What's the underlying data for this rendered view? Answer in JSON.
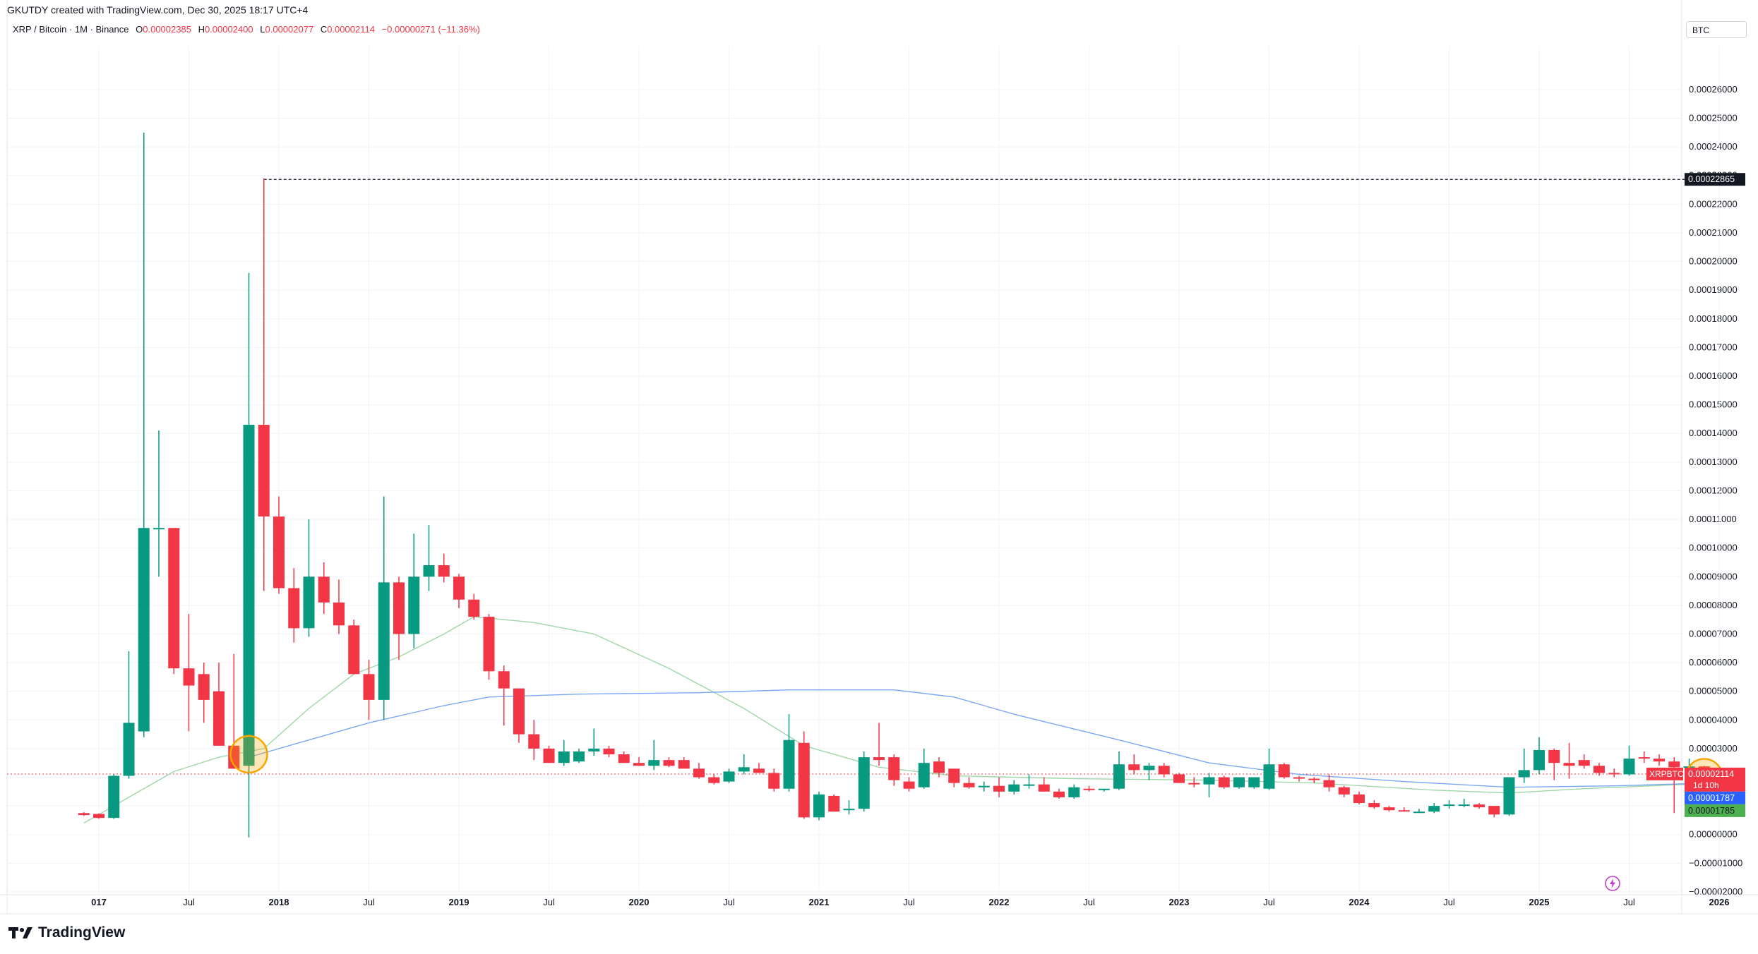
{
  "header": {
    "credit": "GKUTDY created with TradingView.com, Dec 30, 2025 18:17 UTC+4",
    "symbol": "XRP / Bitcoin · 1M · Binance",
    "o_label": "O",
    "o_value": "0.00002385",
    "h_label": "H",
    "h_value": "0.00002400",
    "l_label": "L",
    "l_value": "0.00002077",
    "c_label": "C",
    "c_value": "0.00002114",
    "change": "−0.00000271 (−11.36%)",
    "currency": "BTC"
  },
  "footer": {
    "brand": "TradingView"
  },
  "colors": {
    "up": "#089981",
    "down": "#f23645",
    "ma_fast": "#9fd6a8",
    "ma_slow": "#7aa7f5",
    "highlight": "#f7a600",
    "grid": "#f0f3fa"
  },
  "chart_data": {
    "type": "candlestick",
    "y_ticks": [
      "0.00026000",
      "0.00025000",
      "0.00024000",
      "0.00023000",
      "0.00022000",
      "0.00021000",
      "0.00020000",
      "0.00019000",
      "0.00018000",
      "0.00017000",
      "0.00016000",
      "0.00015000",
      "0.00014000",
      "0.00013000",
      "0.00012000",
      "0.00011000",
      "0.00010000",
      "0.00009000",
      "0.00008000",
      "0.00007000",
      "0.00006000",
      "0.00005000",
      "0.00004000",
      "0.00003000",
      "0.00002000",
      "0.00001000",
      "0.00000000",
      "−0.00001000",
      "−0.00002000"
    ],
    "ylim": [
      -2.1e-05,
      0.000275
    ],
    "x_ticks": [
      {
        "label": "017",
        "date": "2017-01",
        "bold": true
      },
      {
        "label": "Jul",
        "date": "2017-07",
        "bold": false
      },
      {
        "label": "2018",
        "date": "2018-01",
        "bold": true
      },
      {
        "label": "Jul",
        "date": "2018-07",
        "bold": false
      },
      {
        "label": "2019",
        "date": "2019-01",
        "bold": true
      },
      {
        "label": "Jul",
        "date": "2019-07",
        "bold": false
      },
      {
        "label": "2020",
        "date": "2020-01",
        "bold": true
      },
      {
        "label": "Jul",
        "date": "2020-07",
        "bold": false
      },
      {
        "label": "2021",
        "date": "2021-01",
        "bold": true
      },
      {
        "label": "Jul",
        "date": "2021-07",
        "bold": false
      },
      {
        "label": "2022",
        "date": "2022-01",
        "bold": true
      },
      {
        "label": "Jul",
        "date": "2022-07",
        "bold": false
      },
      {
        "label": "2023",
        "date": "2023-01",
        "bold": true
      },
      {
        "label": "Jul",
        "date": "2023-07",
        "bold": false
      },
      {
        "label": "2024",
        "date": "2024-01",
        "bold": true
      },
      {
        "label": "Jul",
        "date": "2024-07",
        "bold": false
      },
      {
        "label": "2025",
        "date": "2025-01",
        "bold": true
      },
      {
        "label": "Jul",
        "date": "2025-07",
        "bold": false
      },
      {
        "label": "2026",
        "date": "2026-01",
        "bold": true
      }
    ],
    "ath_level": {
      "value": 0.00022865,
      "label": "0.00022865"
    },
    "price_tags": [
      {
        "name": "XRPBTC",
        "value": 2.114e-05,
        "label": "0.00002114",
        "sub": "1d 10h",
        "color": "#f23645"
      },
      {
        "name": "",
        "value": 1.787e-05,
        "label": "0.00001787",
        "color": "#2962ff"
      },
      {
        "name": "",
        "value": 1.785e-05,
        "label": "0.00001785",
        "color": "#4caf50"
      }
    ],
    "highlights": [
      {
        "date": "2017-11",
        "value": 2.8e-05
      },
      {
        "date": "2025-12",
        "value": 2e-05
      }
    ],
    "candles": [
      {
        "d": "2016-12",
        "o": 7.5e-06,
        "h": 7.8e-06,
        "l": 6.5e-06,
        "c": 6.8e-06
      },
      {
        "d": "2017-01",
        "o": 7.2e-06,
        "h": 7.4e-06,
        "l": 5.5e-06,
        "c": 5.8e-06
      },
      {
        "d": "2017-02",
        "o": 5.8e-06,
        "h": 2.1e-05,
        "l": 5.5e-06,
        "c": 2.05e-05
      },
      {
        "d": "2017-03",
        "o": 2.05e-05,
        "h": 6.4e-05,
        "l": 1.95e-05,
        "c": 3.9e-05
      },
      {
        "d": "2017-04",
        "o": 3.6e-05,
        "h": 0.000245,
        "l": 3.4e-05,
        "c": 0.000107
      },
      {
        "d": "2017-05",
        "o": 0.000107,
        "h": 0.000141,
        "l": 9e-05,
        "c": 0.000107
      },
      {
        "d": "2017-06",
        "o": 0.000107,
        "h": 0.000107,
        "l": 5.6e-05,
        "c": 5.8e-05
      },
      {
        "d": "2017-07",
        "o": 5.8e-05,
        "h": 7.7e-05,
        "l": 3.6e-05,
        "c": 5.2e-05
      },
      {
        "d": "2017-08",
        "o": 5.6e-05,
        "h": 6e-05,
        "l": 3.9e-05,
        "c": 4.7e-05
      },
      {
        "d": "2017-09",
        "o": 5e-05,
        "h": 6e-05,
        "l": 3.1e-05,
        "c": 3.1e-05
      },
      {
        "d": "2017-10",
        "o": 3.1e-05,
        "h": 6.3e-05,
        "l": 2.3e-05,
        "c": 2.3e-05
      },
      {
        "d": "2017-11",
        "o": 2.4e-05,
        "h": 0.000196,
        "l": -1e-06,
        "c": 0.000143
      },
      {
        "d": "2017-12",
        "o": 0.000143,
        "h": 0.000229,
        "l": 8.5e-05,
        "c": 0.000111
      },
      {
        "d": "2018-01",
        "o": 0.000111,
        "h": 0.000118,
        "l": 8.4e-05,
        "c": 8.6e-05
      },
      {
        "d": "2018-02",
        "o": 8.6e-05,
        "h": 9.3e-05,
        "l": 6.7e-05,
        "c": 7.2e-05
      },
      {
        "d": "2018-03",
        "o": 7.2e-05,
        "h": 0.00011,
        "l": 6.9e-05,
        "c": 9e-05
      },
      {
        "d": "2018-04",
        "o": 9e-05,
        "h": 9.5e-05,
        "l": 7.7e-05,
        "c": 8.1e-05
      },
      {
        "d": "2018-05",
        "o": 8.1e-05,
        "h": 8.9e-05,
        "l": 7e-05,
        "c": 7.3e-05
      },
      {
        "d": "2018-06",
        "o": 7.3e-05,
        "h": 7.5e-05,
        "l": 5.6e-05,
        "c": 5.6e-05
      },
      {
        "d": "2018-07",
        "o": 5.6e-05,
        "h": 6.1e-05,
        "l": 4e-05,
        "c": 4.7e-05
      },
      {
        "d": "2018-08",
        "o": 4.7e-05,
        "h": 0.000118,
        "l": 4e-05,
        "c": 8.8e-05
      },
      {
        "d": "2018-09",
        "o": 8.8e-05,
        "h": 9e-05,
        "l": 6.1e-05,
        "c": 7e-05
      },
      {
        "d": "2018-10",
        "o": 7e-05,
        "h": 0.000105,
        "l": 6.5e-05,
        "c": 9e-05
      },
      {
        "d": "2018-11",
        "o": 9e-05,
        "h": 0.000108,
        "l": 8.5e-05,
        "c": 9.4e-05
      },
      {
        "d": "2018-12",
        "o": 9.4e-05,
        "h": 9.8e-05,
        "l": 8.8e-05,
        "c": 9e-05
      },
      {
        "d": "2019-01",
        "o": 9e-05,
        "h": 9.1e-05,
        "l": 7.9e-05,
        "c": 8.2e-05
      },
      {
        "d": "2019-02",
        "o": 8.2e-05,
        "h": 8.4e-05,
        "l": 7.5e-05,
        "c": 7.6e-05
      },
      {
        "d": "2019-03",
        "o": 7.6e-05,
        "h": 7.7e-05,
        "l": 5.4e-05,
        "c": 5.7e-05
      },
      {
        "d": "2019-04",
        "o": 5.7e-05,
        "h": 5.9e-05,
        "l": 3.8e-05,
        "c": 5.1e-05
      },
      {
        "d": "2019-05",
        "o": 5.1e-05,
        "h": 5.1e-05,
        "l": 3.2e-05,
        "c": 3.5e-05
      },
      {
        "d": "2019-06",
        "o": 3.5e-05,
        "h": 4e-05,
        "l": 2.6e-05,
        "c": 3e-05
      },
      {
        "d": "2019-07",
        "o": 3e-05,
        "h": 3.1e-05,
        "l": 2.6e-05,
        "c": 2.5e-05
      },
      {
        "d": "2019-08",
        "o": 2.5e-05,
        "h": 3.3e-05,
        "l": 2.4e-05,
        "c": 2.9e-05
      },
      {
        "d": "2019-09",
        "o": 2.55e-05,
        "h": 3e-05,
        "l": 2.5e-05,
        "c": 2.9e-05
      },
      {
        "d": "2019-10",
        "o": 2.9e-05,
        "h": 3.7e-05,
        "l": 2.75e-05,
        "c": 3e-05
      },
      {
        "d": "2019-11",
        "o": 3e-05,
        "h": 3.1e-05,
        "l": 2.7e-05,
        "c": 2.8e-05
      },
      {
        "d": "2019-12",
        "o": 2.8e-05,
        "h": 2.9e-05,
        "l": 2.5e-05,
        "c": 2.5e-05
      },
      {
        "d": "2020-01",
        "o": 2.5e-05,
        "h": 2.7e-05,
        "l": 2.4e-05,
        "c": 2.4e-05
      },
      {
        "d": "2020-02",
        "o": 2.4e-05,
        "h": 3.3e-05,
        "l": 2.25e-05,
        "c": 2.6e-05
      },
      {
        "d": "2020-03",
        "o": 2.6e-05,
        "h": 2.7e-05,
        "l": 2.35e-05,
        "c": 2.4e-05
      },
      {
        "d": "2020-04",
        "o": 2.6e-05,
        "h": 2.7e-05,
        "l": 2.3e-05,
        "c": 2.3e-05
      },
      {
        "d": "2020-05",
        "o": 2.3e-05,
        "h": 2.5e-05,
        "l": 1.95e-05,
        "c": 2e-05
      },
      {
        "d": "2020-06",
        "o": 2e-05,
        "h": 2.1e-05,
        "l": 1.75e-05,
        "c": 1.8e-05
      },
      {
        "d": "2020-07",
        "o": 1.85e-05,
        "h": 2.3e-05,
        "l": 1.8e-05,
        "c": 2.2e-05
      },
      {
        "d": "2020-08",
        "o": 2.2e-05,
        "h": 2.8e-05,
        "l": 2.1e-05,
        "c": 2.35e-05
      },
      {
        "d": "2020-09",
        "o": 2.3e-05,
        "h": 2.5e-05,
        "l": 2.15e-05,
        "c": 2.15e-05
      },
      {
        "d": "2020-10",
        "o": 2.15e-05,
        "h": 2.3e-05,
        "l": 1.5e-05,
        "c": 1.6e-05
      },
      {
        "d": "2020-11",
        "o": 1.6e-05,
        "h": 4.2e-05,
        "l": 1.5e-05,
        "c": 3.3e-05
      },
      {
        "d": "2020-12",
        "o": 3.2e-05,
        "h": 3.6e-05,
        "l": 5.5e-06,
        "c": 6e-06
      },
      {
        "d": "2021-01",
        "o": 6e-06,
        "h": 1.5e-05,
        "l": 5e-06,
        "c": 1.4e-05
      },
      {
        "d": "2021-02",
        "o": 1.35e-05,
        "h": 1.4e-05,
        "l": 8e-06,
        "c": 8e-06
      },
      {
        "d": "2021-03",
        "o": 8.5e-06,
        "h": 1.2e-05,
        "l": 7e-06,
        "c": 9e-06
      },
      {
        "d": "2021-04",
        "o": 9e-06,
        "h": 2.9e-05,
        "l": 8e-06,
        "c": 2.7e-05
      },
      {
        "d": "2021-05",
        "o": 2.7e-05,
        "h": 3.9e-05,
        "l": 2.4e-05,
        "c": 2.6e-05
      },
      {
        "d": "2021-06",
        "o": 2.7e-05,
        "h": 2.8e-05,
        "l": 1.7e-05,
        "c": 1.9e-05
      },
      {
        "d": "2021-07",
        "o": 1.85e-05,
        "h": 2e-05,
        "l": 1.5e-05,
        "c": 1.6e-05
      },
      {
        "d": "2021-08",
        "o": 1.65e-05,
        "h": 3e-05,
        "l": 1.6e-05,
        "c": 2.5e-05
      },
      {
        "d": "2021-09",
        "o": 2.55e-05,
        "h": 2.7e-05,
        "l": 2e-05,
        "c": 2.15e-05
      },
      {
        "d": "2021-10",
        "o": 2.3e-05,
        "h": 2.3e-05,
        "l": 1.65e-05,
        "c": 1.8e-05
      },
      {
        "d": "2021-11",
        "o": 1.8e-05,
        "h": 2e-05,
        "l": 1.6e-05,
        "c": 1.65e-05
      },
      {
        "d": "2021-12",
        "o": 1.65e-05,
        "h": 1.85e-05,
        "l": 1.5e-05,
        "c": 1.7e-05
      },
      {
        "d": "2022-01",
        "o": 1.7e-05,
        "h": 2e-05,
        "l": 1.3e-05,
        "c": 1.5e-05
      },
      {
        "d": "2022-02",
        "o": 1.5e-05,
        "h": 1.9e-05,
        "l": 1.4e-05,
        "c": 1.75e-05
      },
      {
        "d": "2022-03",
        "o": 1.75e-05,
        "h": 2.1e-05,
        "l": 1.6e-05,
        "c": 1.75e-05
      },
      {
        "d": "2022-04",
        "o": 1.75e-05,
        "h": 2e-05,
        "l": 1.5e-05,
        "c": 1.5e-05
      },
      {
        "d": "2022-05",
        "o": 1.5e-05,
        "h": 1.6e-05,
        "l": 1.25e-05,
        "c": 1.3e-05
      },
      {
        "d": "2022-06",
        "o": 1.3e-05,
        "h": 1.75e-05,
        "l": 1.25e-05,
        "c": 1.65e-05
      },
      {
        "d": "2022-07",
        "o": 1.6e-05,
        "h": 1.7e-05,
        "l": 1.5e-05,
        "c": 1.55e-05
      },
      {
        "d": "2022-08",
        "o": 1.55e-05,
        "h": 1.6e-05,
        "l": 1.5e-05,
        "c": 1.6e-05
      },
      {
        "d": "2022-09",
        "o": 1.6e-05,
        "h": 2.9e-05,
        "l": 1.55e-05,
        "c": 2.45e-05
      },
      {
        "d": "2022-10",
        "o": 2.45e-05,
        "h": 2.8e-05,
        "l": 2.1e-05,
        "c": 2.25e-05
      },
      {
        "d": "2022-11",
        "o": 2.25e-05,
        "h": 2.5e-05,
        "l": 1.9e-05,
        "c": 2.4e-05
      },
      {
        "d": "2022-12",
        "o": 2.4e-05,
        "h": 2.5e-05,
        "l": 2e-05,
        "c": 2.1e-05
      },
      {
        "d": "2023-01",
        "o": 2.1e-05,
        "h": 2.15e-05,
        "l": 1.8e-05,
        "c": 1.8e-05
      },
      {
        "d": "2023-02",
        "o": 1.8e-05,
        "h": 2e-05,
        "l": 1.65e-05,
        "c": 1.75e-05
      },
      {
        "d": "2023-03",
        "o": 1.75e-05,
        "h": 2.15e-05,
        "l": 1.3e-05,
        "c": 2e-05
      },
      {
        "d": "2023-04",
        "o": 2e-05,
        "h": 2.05e-05,
        "l": 1.6e-05,
        "c": 1.65e-05
      },
      {
        "d": "2023-05",
        "o": 1.65e-05,
        "h": 1.85e-05,
        "l": 1.6e-05,
        "c": 2e-05
      },
      {
        "d": "2023-06",
        "o": 1.65e-05,
        "h": 1.8e-05,
        "l": 1.6e-05,
        "c": 2e-05
      },
      {
        "d": "2023-07",
        "o": 1.6e-05,
        "h": 3e-05,
        "l": 1.55e-05,
        "c": 2.45e-05
      },
      {
        "d": "2023-08",
        "o": 2.45e-05,
        "h": 2.5e-05,
        "l": 1.95e-05,
        "c": 2e-05
      },
      {
        "d": "2023-09",
        "o": 2e-05,
        "h": 2.05e-05,
        "l": 1.85e-05,
        "c": 1.95e-05
      },
      {
        "d": "2023-10",
        "o": 1.95e-05,
        "h": 2e-05,
        "l": 1.8e-05,
        "c": 1.9e-05
      },
      {
        "d": "2023-11",
        "o": 1.9e-05,
        "h": 2.1e-05,
        "l": 1.5e-05,
        "c": 1.65e-05
      },
      {
        "d": "2023-12",
        "o": 1.65e-05,
        "h": 1.7e-05,
        "l": 1.3e-05,
        "c": 1.4e-05
      },
      {
        "d": "2024-01",
        "o": 1.4e-05,
        "h": 1.5e-05,
        "l": 1.05e-05,
        "c": 1.1e-05
      },
      {
        "d": "2024-02",
        "o": 1.1e-05,
        "h": 1.2e-05,
        "l": 9e-06,
        "c": 9.5e-06
      },
      {
        "d": "2024-03",
        "o": 9.5e-06,
        "h": 1e-05,
        "l": 8e-06,
        "c": 8.5e-06
      },
      {
        "d": "2024-04",
        "o": 8.5e-06,
        "h": 9.5e-06,
        "l": 8e-06,
        "c": 8e-06
      },
      {
        "d": "2024-05",
        "o": 8e-06,
        "h": 9e-06,
        "l": 7.5e-06,
        "c": 8e-06
      },
      {
        "d": "2024-06",
        "o": 8e-06,
        "h": 1.1e-05,
        "l": 7.5e-06,
        "c": 1e-05
      },
      {
        "d": "2024-07",
        "o": 1e-05,
        "h": 1.2e-05,
        "l": 9e-06,
        "c": 1.05e-05
      },
      {
        "d": "2024-08",
        "o": 1.05e-05,
        "h": 1.25e-05,
        "l": 9.5e-06,
        "c": 1.05e-05
      },
      {
        "d": "2024-09",
        "o": 1.05e-05,
        "h": 1.1e-05,
        "l": 9e-06,
        "c": 9.5e-06
      },
      {
        "d": "2024-10",
        "o": 1e-05,
        "h": 9.5e-06,
        "l": 6e-06,
        "c": 7e-06
      },
      {
        "d": "2024-11",
        "o": 7e-06,
        "h": 2e-05,
        "l": 6.5e-06,
        "c": 2e-05
      },
      {
        "d": "2024-12",
        "o": 2e-05,
        "h": 3e-05,
        "l": 1.8e-05,
        "c": 2.25e-05
      },
      {
        "d": "2025-01",
        "o": 2.25e-05,
        "h": 3.4e-05,
        "l": 2.1e-05,
        "c": 2.95e-05
      },
      {
        "d": "2025-02",
        "o": 2.95e-05,
        "h": 3e-05,
        "l": 1.9e-05,
        "c": 2.5e-05
      },
      {
        "d": "2025-03",
        "o": 2.5e-05,
        "h": 3.2e-05,
        "l": 1.95e-05,
        "c": 2.4e-05
      },
      {
        "d": "2025-04",
        "o": 2.6e-05,
        "h": 2.8e-05,
        "l": 2.3e-05,
        "c": 2.4e-05
      },
      {
        "d": "2025-05",
        "o": 2.4e-05,
        "h": 2.5e-05,
        "l": 2.05e-05,
        "c": 2.15e-05
      },
      {
        "d": "2025-06",
        "o": 2.15e-05,
        "h": 2.3e-05,
        "l": 2e-05,
        "c": 2.1e-05
      },
      {
        "d": "2025-07",
        "o": 2.1e-05,
        "h": 3.1e-05,
        "l": 2.05e-05,
        "c": 2.65e-05
      },
      {
        "d": "2025-08",
        "o": 2.7e-05,
        "h": 2.9e-05,
        "l": 2.5e-05,
        "c": 2.65e-05
      },
      {
        "d": "2025-09",
        "o": 2.65e-05,
        "h": 2.8e-05,
        "l": 2.4e-05,
        "c": 2.55e-05
      },
      {
        "d": "2025-10",
        "o": 2.55e-05,
        "h": 2.7e-05,
        "l": 7.5e-06,
        "c": 2.35e-05
      },
      {
        "d": "2025-11",
        "o": 2.35e-05,
        "h": 2.65e-05,
        "l": 2.25e-05,
        "c": 2.38e-05
      },
      {
        "d": "2025-12",
        "o": 2.38e-05,
        "h": 2.4e-05,
        "l": 2.08e-05,
        "c": 2.11e-05
      }
    ],
    "ma_fast": [
      [
        "2016-12",
        4e-06
      ],
      [
        "2017-03",
        1.3e-05
      ],
      [
        "2017-06",
        2.2e-05
      ],
      [
        "2017-09",
        2.7e-05
      ],
      [
        "2017-12",
        3e-05
      ],
      [
        "2018-03",
        4.4e-05
      ],
      [
        "2018-06",
        5.6e-05
      ],
      [
        "2018-09",
        6.2e-05
      ],
      [
        "2018-12",
        7e-05
      ],
      [
        "2019-02",
        7.6e-05
      ],
      [
        "2019-06",
        7.4e-05
      ],
      [
        "2019-10",
        7e-05
      ],
      [
        "2020-03",
        5.8e-05
      ],
      [
        "2020-08",
        4.4e-05
      ],
      [
        "2020-12",
        3.1e-05
      ],
      [
        "2021-05",
        2.35e-05
      ],
      [
        "2021-10",
        2.05e-05
      ],
      [
        "2022-06",
        1.95e-05
      ],
      [
        "2023-03",
        1.9e-05
      ],
      [
        "2023-10",
        1.8e-05
      ],
      [
        "2024-06",
        1.55e-05
      ],
      [
        "2024-11",
        1.45e-05
      ],
      [
        "2025-04",
        1.6e-05
      ],
      [
        "2025-12",
        1.78e-05
      ]
    ],
    "ma_slow": [
      [
        "2017-11",
        2.7e-05
      ],
      [
        "2018-03",
        3.3e-05
      ],
      [
        "2018-07",
        3.9e-05
      ],
      [
        "2018-12",
        4.5e-05
      ],
      [
        "2019-03",
        4.8e-05
      ],
      [
        "2019-09",
        4.9e-05
      ],
      [
        "2020-05",
        4.95e-05
      ],
      [
        "2020-11",
        5.05e-05
      ],
      [
        "2021-06",
        5.05e-05
      ],
      [
        "2021-10",
        4.8e-05
      ],
      [
        "2022-02",
        4.2e-05
      ],
      [
        "2022-09",
        3.3e-05
      ],
      [
        "2023-03",
        2.5e-05
      ],
      [
        "2023-09",
        2.1e-05
      ],
      [
        "2024-04",
        1.85e-05
      ],
      [
        "2024-11",
        1.65e-05
      ],
      [
        "2025-06",
        1.7e-05
      ],
      [
        "2025-12",
        1.79e-05
      ]
    ]
  }
}
